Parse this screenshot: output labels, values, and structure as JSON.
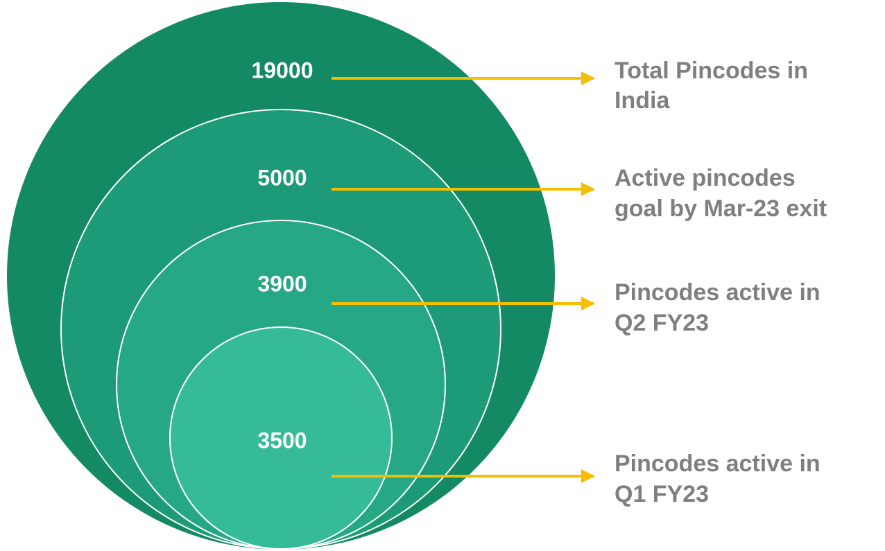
{
  "nodes": [
    {
      "value": "19000",
      "label": [
        "Total Pincodes in",
        "India"
      ]
    },
    {
      "value": "5000",
      "label": [
        "Active pincodes",
        "goal by Mar-23 exit"
      ]
    },
    {
      "value": "3900",
      "label": [
        "Pincodes active in",
        "Q2 FY23"
      ]
    },
    {
      "value": "3500",
      "label": [
        "Pincodes active in",
        "Q1 FY23"
      ]
    }
  ]
}
